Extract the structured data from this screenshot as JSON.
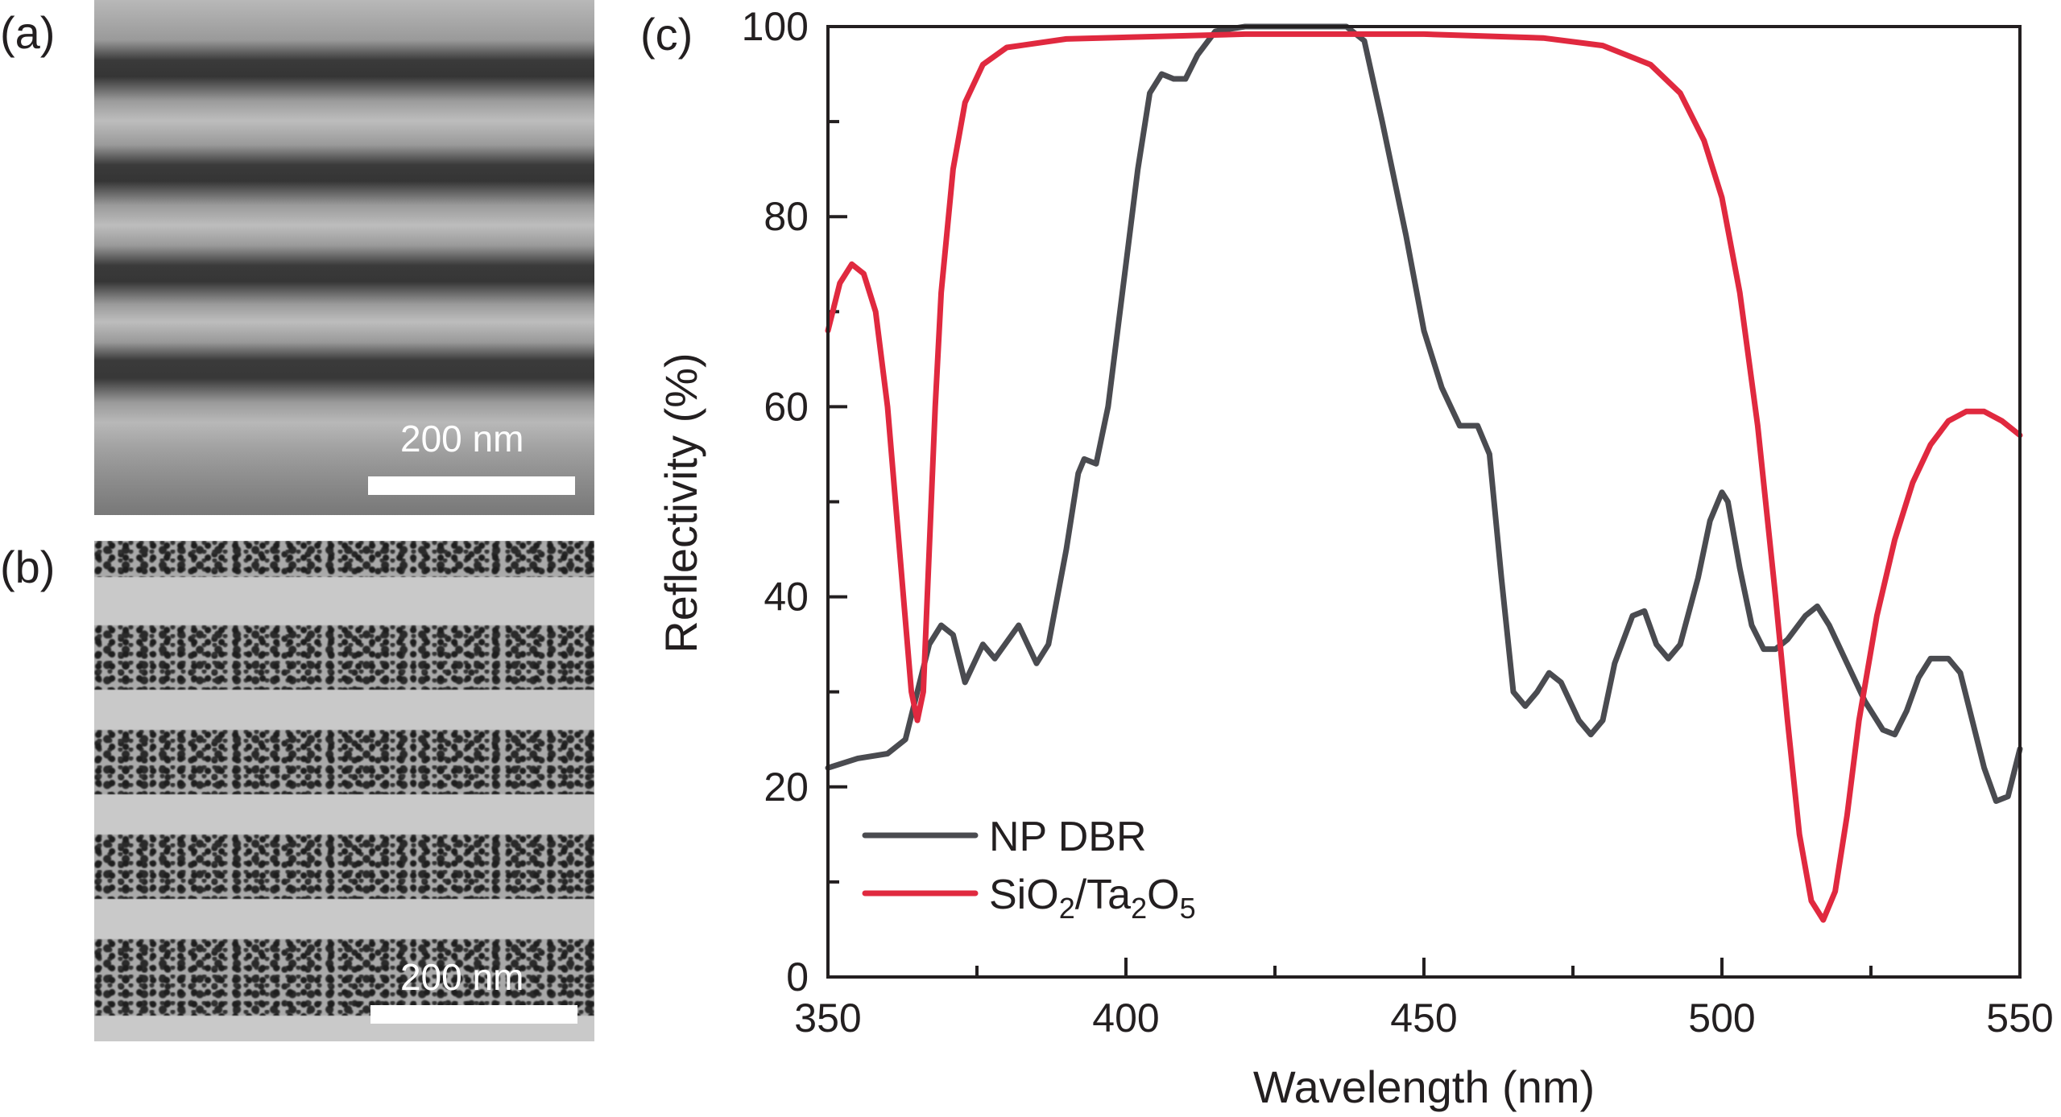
{
  "panels": {
    "a": {
      "label": "(a)",
      "scale_bar": "200 nm"
    },
    "b": {
      "label": "(b)",
      "scale_bar": "200 nm"
    },
    "c": {
      "label": "(c)"
    }
  },
  "chart_data": {
    "type": "line",
    "xlabel": "Wavelength (nm)",
    "ylabel": "Reflectivity (%)",
    "xlim": [
      350,
      550
    ],
    "ylim": [
      0,
      100
    ],
    "xticks": [
      "350",
      "400",
      "450",
      "500",
      "550"
    ],
    "yticks": [
      "0",
      "20",
      "40",
      "60",
      "80",
      "100"
    ],
    "grid": false,
    "legend_position": "bottom-left",
    "series": [
      {
        "name": "NP DBR",
        "color": "#4a4b50",
        "x": [
          350,
          355,
          360,
          363,
          365,
          367,
          369,
          371,
          373,
          376,
          378,
          382,
          385,
          387,
          390,
          392,
          393,
          395,
          397,
          400,
          402,
          404,
          406,
          408,
          410,
          412,
          415,
          420,
          430,
          437,
          440,
          443,
          447,
          450,
          453,
          456,
          459,
          461,
          463,
          465,
          467,
          469,
          471,
          473,
          476,
          478,
          480,
          482,
          485,
          487,
          489,
          491,
          493,
          496,
          498,
          500,
          501,
          503,
          505,
          507,
          509,
          511,
          514,
          516,
          518,
          521,
          524,
          527,
          529,
          531,
          533,
          535,
          538,
          540,
          542,
          544,
          546,
          548,
          550
        ],
        "y": [
          22,
          23,
          23.5,
          25,
          30,
          35,
          37,
          36,
          31,
          35,
          33.5,
          37,
          33,
          35,
          45,
          53,
          54.5,
          54,
          60,
          75,
          85,
          93,
          95,
          94.5,
          94.5,
          97,
          99.5,
          100,
          100,
          100,
          98.5,
          90,
          78,
          68,
          62,
          58,
          58,
          55,
          42,
          30,
          28.5,
          30,
          32,
          31,
          27,
          25.5,
          27,
          33,
          38,
          38.5,
          35,
          33.5,
          35,
          42,
          48,
          51,
          50,
          43,
          37,
          34.5,
          34.5,
          35.5,
          38,
          39,
          37,
          33,
          29,
          26,
          25.5,
          28,
          31.5,
          33.5,
          33.5,
          32,
          27,
          22,
          18.5,
          19,
          24
        ]
      },
      {
        "name": "SiO2/Ta2O5",
        "color": "#e0293f",
        "x": [
          350,
          352,
          354,
          356,
          358,
          360,
          362,
          364,
          365,
          366,
          367,
          368,
          369,
          371,
          373,
          376,
          380,
          390,
          420,
          450,
          470,
          480,
          488,
          493,
          497,
          500,
          503,
          506,
          509,
          511,
          513,
          515,
          517,
          519,
          521,
          523,
          526,
          529,
          532,
          535,
          538,
          541,
          544,
          547,
          550
        ],
        "y": [
          68,
          73,
          75,
          74,
          70,
          60,
          45,
          30,
          27,
          30,
          45,
          60,
          72,
          85,
          92,
          96,
          97.8,
          98.7,
          99.2,
          99.2,
          98.8,
          98,
          96,
          93,
          88,
          82,
          72,
          58,
          40,
          27,
          15,
          8,
          6,
          9,
          17,
          27,
          38,
          46,
          52,
          56,
          58.5,
          59.5,
          59.5,
          58.5,
          57
        ]
      }
    ]
  }
}
